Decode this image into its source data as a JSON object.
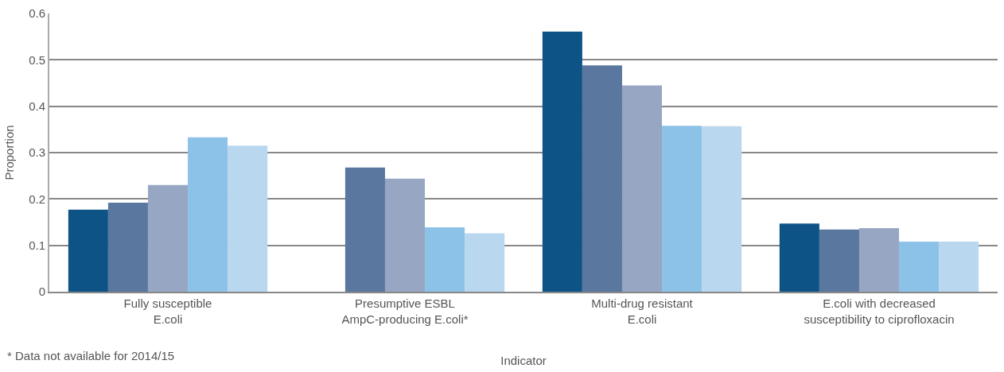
{
  "chart_data": {
    "type": "bar",
    "categories": [
      "Fully susceptible\nE.coli",
      "Presumptive ESBL\nAmpC-producing E.coli*",
      "Multi-drug resistant\nE.coli",
      "E.coli with decreased\nsusceptibility to ciprofloxacin"
    ],
    "series": [
      {
        "color": "#0e5386",
        "values": [
          0.177,
          null,
          0.561,
          0.147
        ]
      },
      {
        "color": "#5a779f",
        "values": [
          0.192,
          0.268,
          0.488,
          0.134
        ]
      },
      {
        "color": "#97a6c3",
        "values": [
          0.23,
          0.244,
          0.445,
          0.137
        ]
      },
      {
        "color": "#8dc2e8",
        "values": [
          0.333,
          0.139,
          0.358,
          0.108
        ]
      },
      {
        "color": "#b9d7ef",
        "values": [
          0.315,
          0.126,
          0.357,
          0.108
        ]
      }
    ],
    "xlabel": "Indicator",
    "ylabel": "Proportion",
    "ylim": [
      0,
      0.6
    ],
    "yticks": [
      {
        "value": 0,
        "label": "0"
      },
      0.1,
      0.2,
      0.3,
      0.4,
      0.5,
      0.6
    ],
    "grid": "y",
    "legend": false,
    "annotations": [
      "* Data not available for 2014/15"
    ]
  }
}
